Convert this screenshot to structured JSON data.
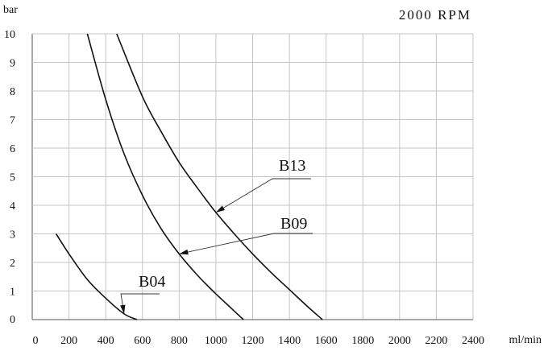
{
  "chart_data": {
    "type": "line",
    "title": "2000 RPM",
    "xlabel": "ml/min",
    "ylabel": "bar",
    "xlim": [
      0,
      2400
    ],
    "ylim": [
      0,
      10
    ],
    "x_ticks": [
      "0",
      "200",
      "400",
      "600",
      "800",
      "1000",
      "1200",
      "1400",
      "1600",
      "1800",
      "2000",
      "2200",
      "2400"
    ],
    "y_ticks": [
      "0",
      "1",
      "2",
      "3",
      "4",
      "5",
      "6",
      "7",
      "8",
      "9",
      "10"
    ],
    "grid": true,
    "series": [
      {
        "name": "B04",
        "x": [
          130,
          200,
          300,
          400,
          500,
          570
        ],
        "y": [
          3.0,
          2.3,
          1.4,
          0.75,
          0.2,
          0.0
        ]
      },
      {
        "name": "B09",
        "x": [
          300,
          400,
          500,
          600,
          700,
          800,
          900,
          1000,
          1100,
          1150
        ],
        "y": [
          10.0,
          7.7,
          5.8,
          4.35,
          3.2,
          2.3,
          1.55,
          0.9,
          0.3,
          0.0
        ]
      },
      {
        "name": "B13",
        "x": [
          460,
          600,
          700,
          800,
          900,
          1000,
          1100,
          1200,
          1300,
          1400,
          1500,
          1580
        ],
        "y": [
          10.0,
          7.8,
          6.6,
          5.5,
          4.6,
          3.75,
          3.0,
          2.3,
          1.65,
          1.05,
          0.45,
          0.0
        ]
      }
    ]
  }
}
